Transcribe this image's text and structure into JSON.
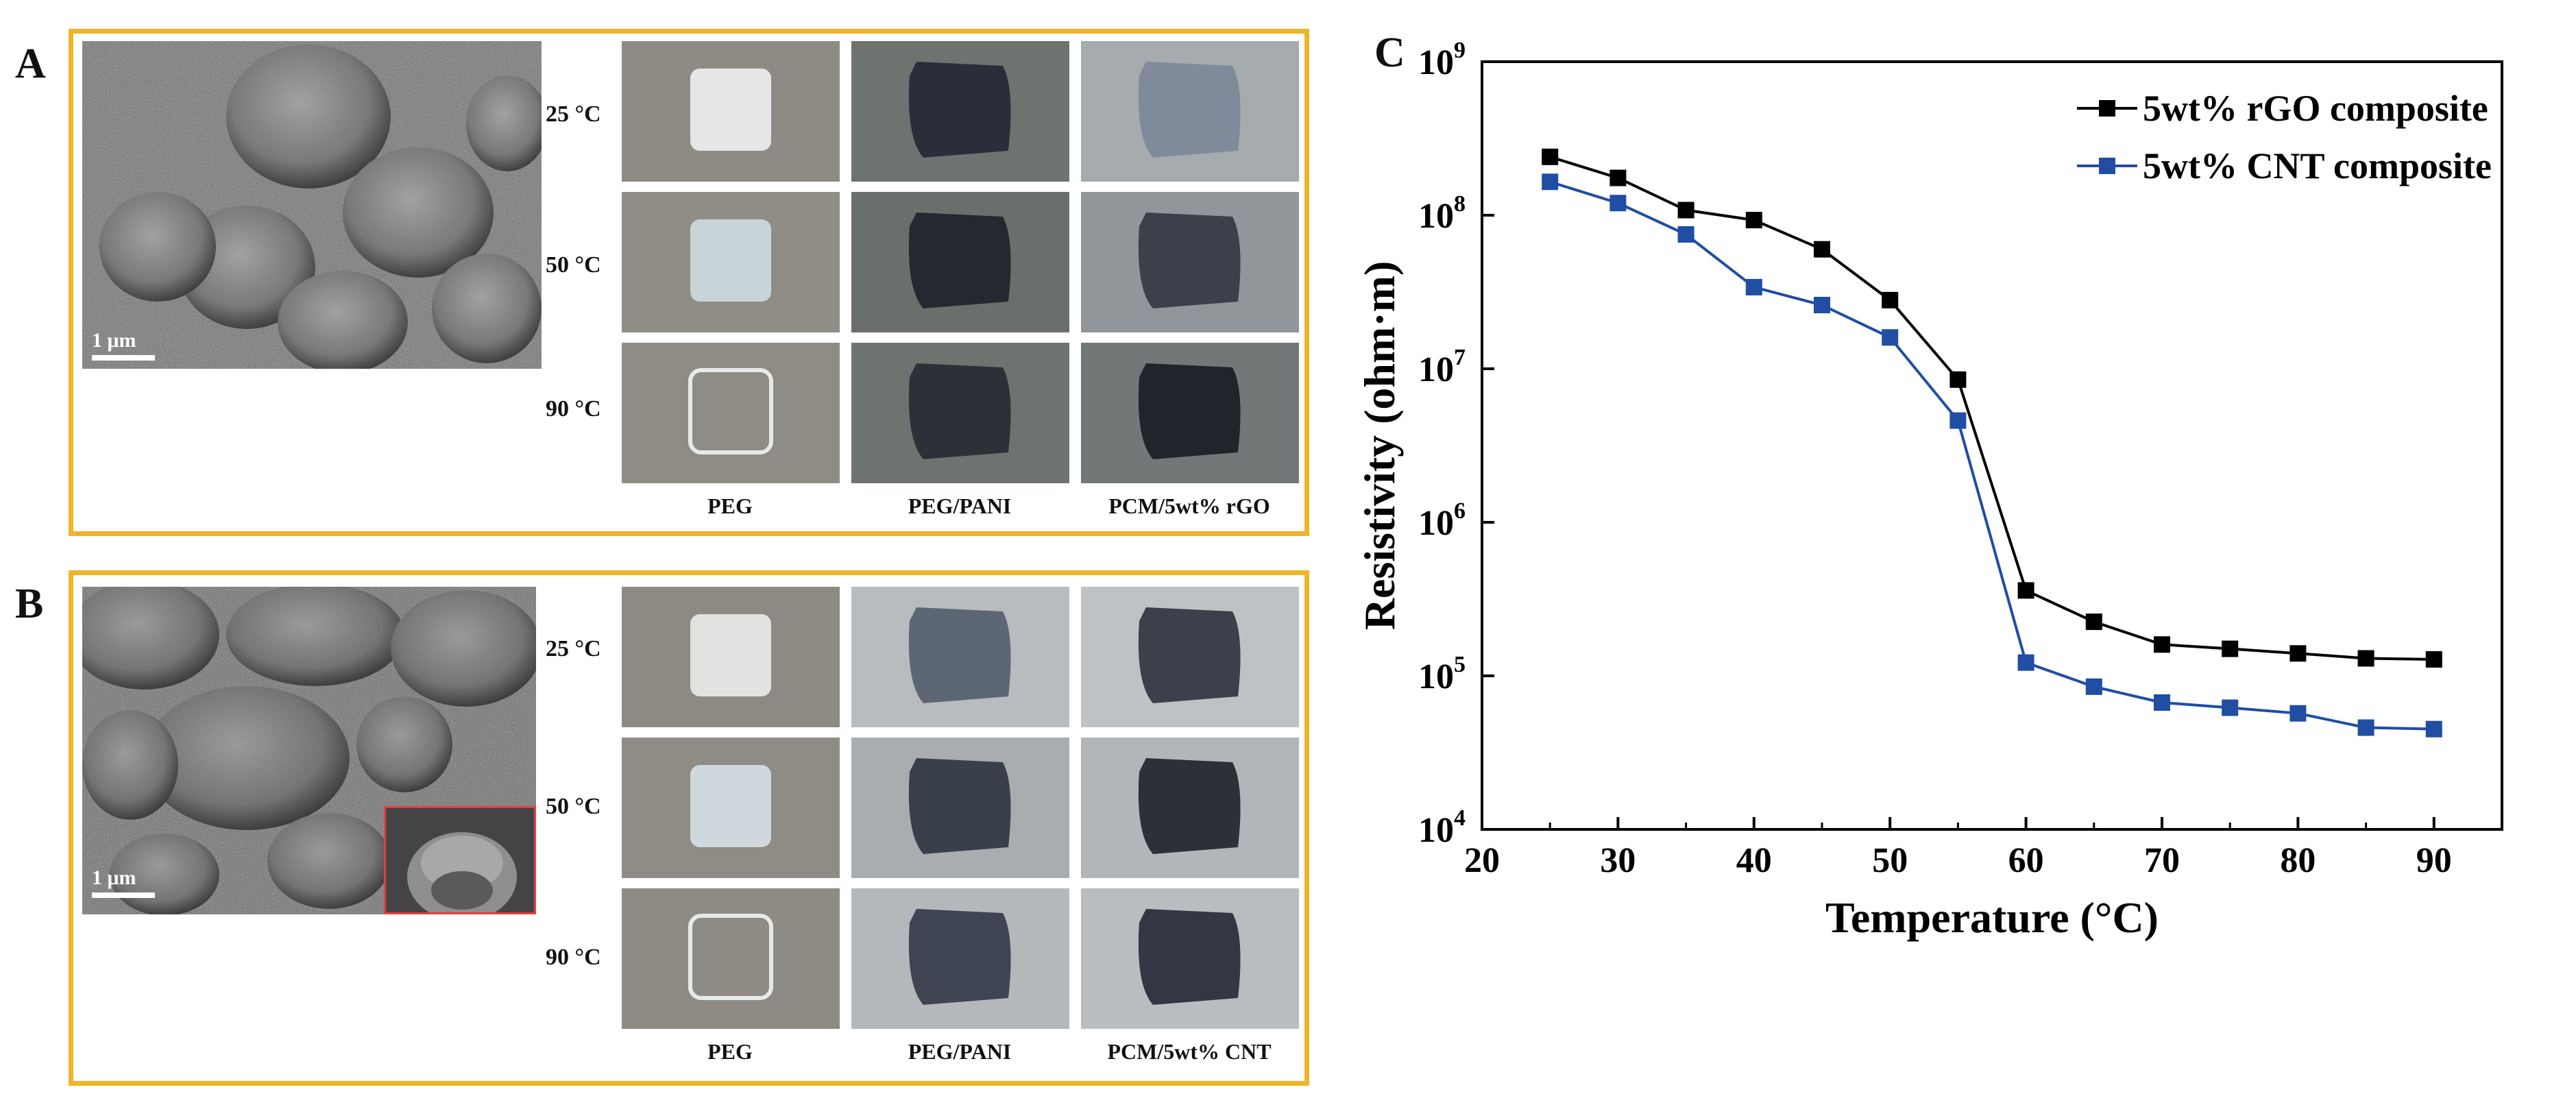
{
  "panels": {
    "a": {
      "letter": "A",
      "scale_label": "1 μm",
      "temps": [
        "25 °C",
        "50 °C",
        "90 °C"
      ],
      "columns": [
        "PEG",
        "PEG/PANI",
        "PCM/5wt% rGO"
      ]
    },
    "b": {
      "letter": "B",
      "scale_label": "1 μm",
      "temps": [
        "25 °C",
        "50 °C",
        "90 °C"
      ],
      "columns": [
        "PEG",
        "PEG/PANI",
        "PCM/5wt% CNT"
      ]
    },
    "c": {
      "letter": "C"
    }
  },
  "colors": {
    "frame": "#f0b429",
    "inset_border": "#e04040",
    "series_rgo": "#000000",
    "series_cnt": "#1f4ea3"
  },
  "chart_data": {
    "type": "line",
    "xlabel": "Temperature (°C)",
    "ylabel": "Resistivity (ohm·m)",
    "xlim": [
      20,
      95
    ],
    "ylim": [
      10000,
      1000000000
    ],
    "yscale": "log",
    "x_ticks": [
      "20",
      "30",
      "40",
      "50",
      "60",
      "70",
      "80",
      "90"
    ],
    "y_ticks": [
      {
        "base": "10",
        "exp": "4"
      },
      {
        "base": "10",
        "exp": "5"
      },
      {
        "base": "10",
        "exp": "6"
      },
      {
        "base": "10",
        "exp": "7"
      },
      {
        "base": "10",
        "exp": "8"
      },
      {
        "base": "10",
        "exp": "9"
      }
    ],
    "legend_position": "top-right",
    "grid": false,
    "x": [
      25,
      30,
      35,
      40,
      45,
      50,
      55,
      60,
      65,
      70,
      75,
      80,
      85,
      90
    ],
    "series": [
      {
        "name": "5wt% rGO composite",
        "color": "#000000",
        "marker": "square",
        "values": [
          240000000,
          175000000,
          108000000,
          93000000,
          60000000,
          28000000,
          8500000,
          360000,
          225000,
          160000,
          150000,
          140000,
          130000,
          128000
        ]
      },
      {
        "name": "5wt% CNT composite",
        "color": "#1f4ea3",
        "marker": "square",
        "values": [
          165000000,
          120000000,
          75000000,
          34000000,
          26000000,
          16000000,
          4600000,
          122000,
          85000,
          67000,
          62000,
          57000,
          46000,
          45000
        ]
      }
    ]
  }
}
